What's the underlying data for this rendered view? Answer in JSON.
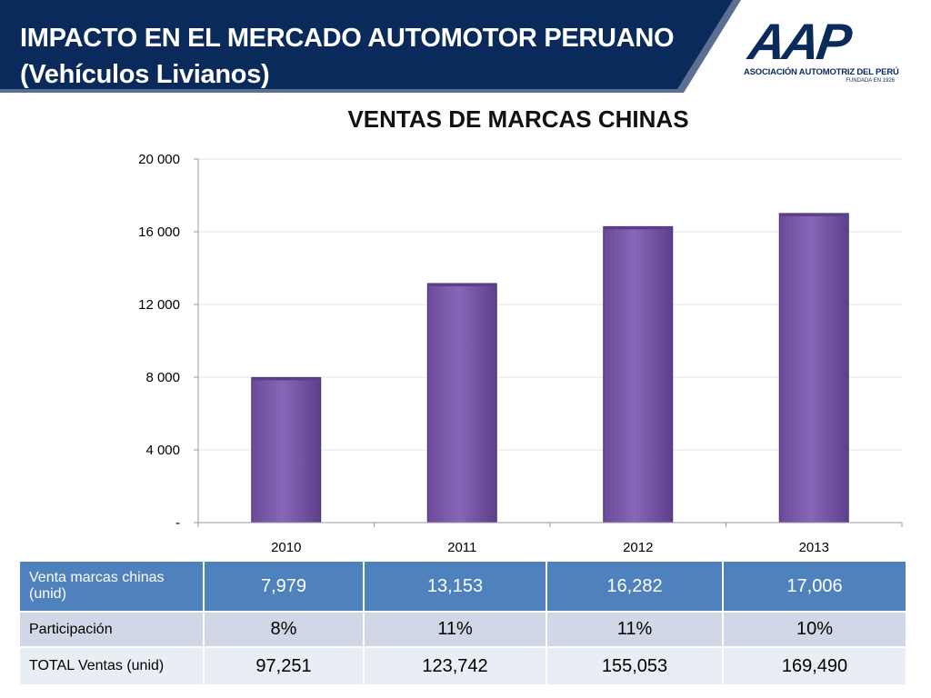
{
  "header": {
    "title_line1": "IMPACTO EN EL MERCADO AUTOMOTOR PERUANO",
    "title_line2": "(Vehículos Livianos)",
    "colors": {
      "banner": "#0b2a5c",
      "banner_edge": "#5b6f91"
    }
  },
  "logo": {
    "mark": "AAP",
    "name": "ASOCIACIÓN AUTOMOTRIZ DEL PERÚ",
    "tagline": "FUNDADA EN 1926"
  },
  "chart_data": {
    "type": "bar",
    "title": "VENTAS DE MARCAS CHINAS",
    "categories": [
      "2010",
      "2011",
      "2012",
      "2013"
    ],
    "values": [
      7979,
      13153,
      16282,
      17006
    ],
    "ylim": [
      0,
      20000
    ],
    "yticks": [
      0,
      4000,
      8000,
      12000,
      16000,
      20000
    ],
    "ytick_labels": [
      "-",
      "4 000",
      "8 000",
      "12 000",
      "16 000",
      "20 000"
    ],
    "grid": true,
    "bar_color": "#7f5fae",
    "legend": "none"
  },
  "table": {
    "rows": [
      {
        "label": "Venta marcas chinas (unid)",
        "values": [
          "7,979",
          "13,153",
          "16,282",
          "17,006"
        ]
      },
      {
        "label": "Participación",
        "values": [
          "8%",
          "11%",
          "11%",
          "10%"
        ]
      },
      {
        "label": "TOTAL Ventas (unid)",
        "values": [
          "97,251",
          "123,742",
          "155,053",
          "169,490"
        ]
      }
    ]
  }
}
